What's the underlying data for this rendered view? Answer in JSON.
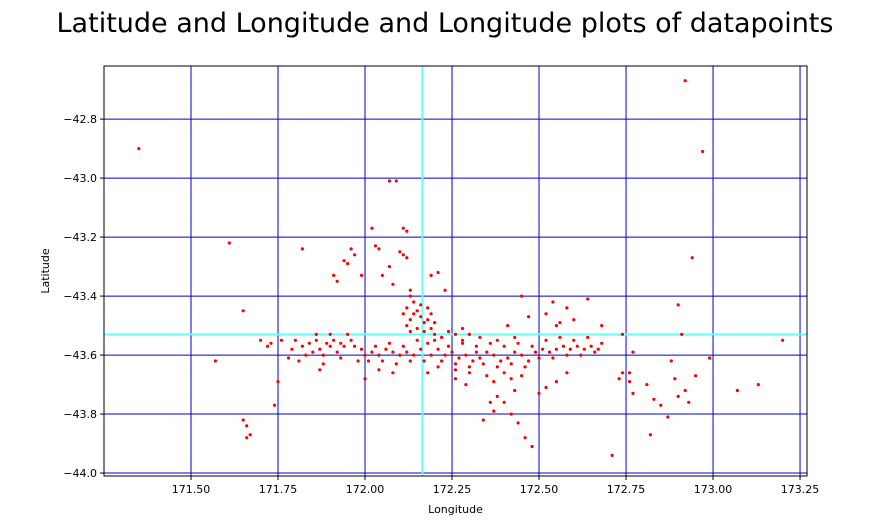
{
  "chart_data": {
    "type": "scatter",
    "title": "Latitude and Longitude and Longitude plots of datapoints",
    "xlabel": "Longitude",
    "ylabel": "Latitude",
    "xlim": [
      171.25,
      173.27
    ],
    "ylim": [
      -44.01,
      -42.62
    ],
    "xticks": [
      171.5,
      171.75,
      172.0,
      172.25,
      172.5,
      172.75,
      173.0,
      173.25
    ],
    "xtick_labels": [
      "171.50",
      "171.75",
      "172.00",
      "172.25",
      "172.50",
      "172.75",
      "173.00",
      "173.25"
    ],
    "yticks": [
      -42.8,
      -43.0,
      -43.2,
      -43.4,
      -43.6,
      -43.8,
      -44.0
    ],
    "ytick_labels": [
      "−42.8",
      "−43.0",
      "−43.2",
      "−43.4",
      "−43.6",
      "−43.8",
      "−44.0"
    ],
    "grid": true,
    "grid_color": "#0000cc",
    "reference_lines": {
      "x": 172.165,
      "y": -43.53,
      "color": "#66ffff"
    },
    "point_color": "#ff0000",
    "points": [
      [
        171.35,
        -42.9
      ],
      [
        172.92,
        -42.67
      ],
      [
        172.97,
        -42.91
      ],
      [
        171.61,
        -43.22
      ],
      [
        171.57,
        -43.62
      ],
      [
        171.65,
        -43.45
      ],
      [
        171.65,
        -43.82
      ],
      [
        171.66,
        -43.84
      ],
      [
        171.66,
        -43.88
      ],
      [
        171.67,
        -43.87
      ],
      [
        171.74,
        -43.77
      ],
      [
        171.75,
        -43.69
      ],
      [
        171.73,
        -43.56
      ],
      [
        171.76,
        -43.55
      ],
      [
        171.79,
        -43.58
      ],
      [
        171.82,
        -43.24
      ],
      [
        171.7,
        -43.55
      ],
      [
        171.72,
        -43.57
      ],
      [
        172.07,
        -43.01
      ],
      [
        172.09,
        -43.01
      ],
      [
        172.11,
        -43.17
      ],
      [
        172.12,
        -43.18
      ],
      [
        172.1,
        -43.25
      ],
      [
        172.11,
        -43.26
      ],
      [
        172.12,
        -43.27
      ],
      [
        172.02,
        -43.17
      ],
      [
        172.03,
        -43.23
      ],
      [
        172.04,
        -43.24
      ],
      [
        171.96,
        -43.24
      ],
      [
        171.97,
        -43.26
      ],
      [
        171.95,
        -43.29
      ],
      [
        171.94,
        -43.28
      ],
      [
        171.99,
        -43.33
      ],
      [
        171.91,
        -43.33
      ],
      [
        171.92,
        -43.35
      ],
      [
        172.05,
        -43.33
      ],
      [
        172.07,
        -43.3
      ],
      [
        172.08,
        -43.36
      ],
      [
        172.13,
        -43.38
      ],
      [
        172.19,
        -43.33
      ],
      [
        172.21,
        -43.32
      ],
      [
        172.23,
        -43.38
      ],
      [
        172.64,
        -43.41
      ],
      [
        172.68,
        -43.5
      ],
      [
        172.58,
        -43.44
      ],
      [
        172.54,
        -43.42
      ],
      [
        172.52,
        -43.46
      ],
      [
        172.56,
        -43.49
      ],
      [
        172.47,
        -43.47
      ],
      [
        172.45,
        -43.4
      ],
      [
        172.41,
        -43.5
      ],
      [
        172.94,
        -43.27
      ],
      [
        172.9,
        -43.43
      ],
      [
        172.91,
        -43.53
      ],
      [
        172.88,
        -43.62
      ],
      [
        172.99,
        -43.61
      ],
      [
        173.2,
        -43.55
      ],
      [
        172.74,
        -43.53
      ],
      [
        172.77,
        -43.59
      ],
      [
        172.71,
        -43.94
      ],
      [
        172.76,
        -43.66
      ],
      [
        172.76,
        -43.69
      ],
      [
        172.77,
        -43.73
      ],
      [
        172.81,
        -43.7
      ],
      [
        172.83,
        -43.75
      ],
      [
        172.85,
        -43.77
      ],
      [
        172.89,
        -43.68
      ],
      [
        172.9,
        -43.74
      ],
      [
        172.92,
        -43.72
      ],
      [
        172.93,
        -43.76
      ],
      [
        172.95,
        -43.67
      ],
      [
        172.82,
        -43.87
      ],
      [
        172.87,
        -43.81
      ],
      [
        173.07,
        -43.72
      ],
      [
        173.13,
        -43.7
      ],
      [
        172.73,
        -43.68
      ],
      [
        172.74,
        -43.66
      ],
      [
        172.46,
        -43.88
      ],
      [
        172.48,
        -43.91
      ],
      [
        172.44,
        -43.83
      ],
      [
        172.42,
        -43.8
      ],
      [
        172.4,
        -43.76
      ],
      [
        172.38,
        -43.74
      ],
      [
        172.36,
        -43.76
      ],
      [
        172.43,
        -43.72
      ],
      [
        172.5,
        -43.73
      ],
      [
        172.52,
        -43.71
      ],
      [
        172.55,
        -43.69
      ],
      [
        172.58,
        -43.66
      ],
      [
        172.34,
        -43.82
      ],
      [
        172.37,
        -43.79
      ],
      [
        172.29,
        -43.7
      ],
      [
        172.26,
        -43.68
      ],
      [
        171.8,
        -43.55
      ],
      [
        171.82,
        -43.57
      ],
      [
        171.84,
        -43.56
      ],
      [
        171.86,
        -43.55
      ],
      [
        171.87,
        -43.58
      ],
      [
        171.89,
        -43.56
      ],
      [
        171.9,
        -43.57
      ],
      [
        171.91,
        -43.55
      ],
      [
        171.93,
        -43.56
      ],
      [
        171.94,
        -43.57
      ],
      [
        171.96,
        -43.55
      ],
      [
        171.97,
        -43.57
      ],
      [
        171.85,
        -43.59
      ],
      [
        171.88,
        -43.6
      ],
      [
        171.92,
        -43.59
      ],
      [
        171.86,
        -43.53
      ],
      [
        171.9,
        -43.53
      ],
      [
        171.95,
        -43.53
      ],
      [
        171.83,
        -43.6
      ],
      [
        171.99,
        -43.58
      ],
      [
        171.78,
        -43.61
      ],
      [
        171.81,
        -43.62
      ],
      [
        171.88,
        -43.63
      ],
      [
        171.93,
        -43.61
      ],
      [
        171.87,
        -43.65
      ],
      [
        171.98,
        -43.62
      ],
      [
        172.0,
        -43.6
      ],
      [
        172.02,
        -43.59
      ],
      [
        172.04,
        -43.6
      ],
      [
        172.06,
        -43.58
      ],
      [
        172.08,
        -43.59
      ],
      [
        172.1,
        -43.6
      ],
      [
        172.12,
        -43.59
      ],
      [
        172.14,
        -43.6
      ],
      [
        172.16,
        -43.58
      ],
      [
        172.01,
        -43.62
      ],
      [
        172.05,
        -43.62
      ],
      [
        172.09,
        -43.63
      ],
      [
        172.13,
        -43.62
      ],
      [
        172.03,
        -43.57
      ],
      [
        172.07,
        -43.56
      ],
      [
        172.11,
        -43.57
      ],
      [
        172.15,
        -43.55
      ],
      [
        172.04,
        -43.65
      ],
      [
        172.0,
        -43.68
      ],
      [
        172.08,
        -43.66
      ],
      [
        172.12,
        -43.5
      ],
      [
        172.13,
        -43.48
      ],
      [
        172.14,
        -43.46
      ],
      [
        172.15,
        -43.45
      ],
      [
        172.16,
        -43.47
      ],
      [
        172.17,
        -43.49
      ],
      [
        172.18,
        -43.48
      ],
      [
        172.19,
        -43.46
      ],
      [
        172.2,
        -43.49
      ],
      [
        172.13,
        -43.52
      ],
      [
        172.15,
        -43.51
      ],
      [
        172.17,
        -43.52
      ],
      [
        172.19,
        -43.51
      ],
      [
        172.12,
        -43.44
      ],
      [
        172.14,
        -43.42
      ],
      [
        172.16,
        -43.43
      ],
      [
        172.18,
        -43.44
      ],
      [
        172.11,
        -43.46
      ],
      [
        172.2,
        -43.53
      ],
      [
        172.13,
        -43.4
      ],
      [
        172.21,
        -43.58
      ],
      [
        172.23,
        -43.6
      ],
      [
        172.25,
        -43.59
      ],
      [
        172.27,
        -43.61
      ],
      [
        172.29,
        -43.6
      ],
      [
        172.31,
        -43.62
      ],
      [
        172.33,
        -43.61
      ],
      [
        172.35,
        -43.59
      ],
      [
        172.37,
        -43.6
      ],
      [
        172.39,
        -43.62
      ],
      [
        172.41,
        -43.61
      ],
      [
        172.43,
        -43.59
      ],
      [
        172.45,
        -43.6
      ],
      [
        172.47,
        -43.62
      ],
      [
        172.22,
        -43.62
      ],
      [
        172.26,
        -43.63
      ],
      [
        172.3,
        -43.64
      ],
      [
        172.34,
        -43.63
      ],
      [
        172.38,
        -43.64
      ],
      [
        172.42,
        -43.63
      ],
      [
        172.46,
        -43.64
      ],
      [
        172.24,
        -43.57
      ],
      [
        172.28,
        -43.56
      ],
      [
        172.32,
        -43.57
      ],
      [
        172.36,
        -43.56
      ],
      [
        172.4,
        -43.57
      ],
      [
        172.44,
        -43.56
      ],
      [
        172.48,
        -43.57
      ],
      [
        172.3,
        -43.66
      ],
      [
        172.35,
        -43.67
      ],
      [
        172.4,
        -43.66
      ],
      [
        172.45,
        -43.67
      ],
      [
        172.28,
        -43.55
      ],
      [
        172.33,
        -43.54
      ],
      [
        172.38,
        -43.55
      ],
      [
        172.43,
        -43.54
      ],
      [
        172.26,
        -43.65
      ],
      [
        172.37,
        -43.69
      ],
      [
        172.42,
        -43.68
      ],
      [
        172.32,
        -43.59
      ],
      [
        172.49,
        -43.59
      ],
      [
        172.51,
        -43.58
      ],
      [
        172.53,
        -43.59
      ],
      [
        172.55,
        -43.58
      ],
      [
        172.57,
        -43.57
      ],
      [
        172.59,
        -43.58
      ],
      [
        172.61,
        -43.57
      ],
      [
        172.63,
        -43.58
      ],
      [
        172.65,
        -43.57
      ],
      [
        172.67,
        -43.58
      ],
      [
        172.5,
        -43.61
      ],
      [
        172.54,
        -43.61
      ],
      [
        172.58,
        -43.6
      ],
      [
        172.62,
        -43.6
      ],
      [
        172.66,
        -43.59
      ],
      [
        172.52,
        -43.55
      ],
      [
        172.56,
        -43.54
      ],
      [
        172.6,
        -43.55
      ],
      [
        172.64,
        -43.54
      ],
      [
        172.68,
        -43.56
      ],
      [
        172.55,
        -43.5
      ],
      [
        172.6,
        -43.48
      ],
      [
        172.18,
        -43.56
      ],
      [
        172.2,
        -43.55
      ],
      [
        172.22,
        -43.54
      ],
      [
        172.24,
        -43.52
      ],
      [
        172.26,
        -43.53
      ],
      [
        172.28,
        -43.51
      ],
      [
        172.3,
        -43.53
      ],
      [
        172.19,
        -43.6
      ],
      [
        172.17,
        -43.62
      ],
      [
        172.21,
        -43.64
      ],
      [
        172.18,
        -43.66
      ]
    ]
  }
}
